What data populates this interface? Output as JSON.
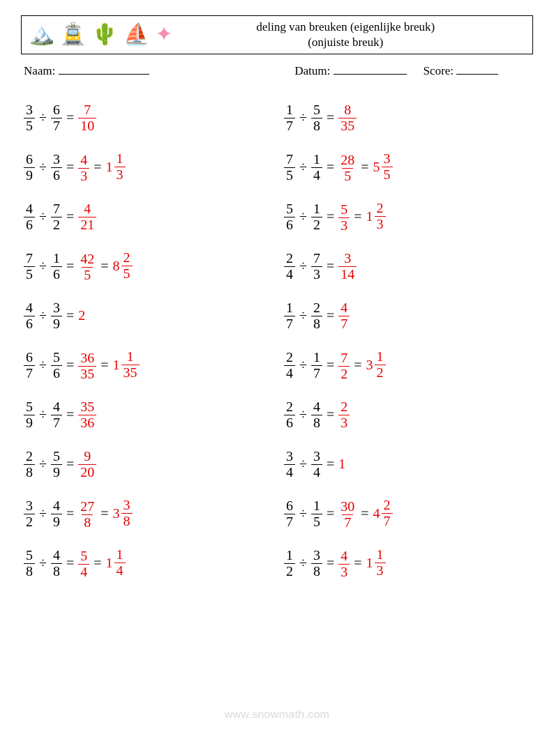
{
  "title_line1": "deling van breuken (eigenlijke breuk)",
  "title_line2": "(onjuiste breuk)",
  "labels": {
    "name": "Naam:",
    "date": "Datum:",
    "score": "Score:"
  },
  "answer_color": "#e60000",
  "text_color": "#000000",
  "background_color": "#ffffff",
  "font_size_problem": 20,
  "icons": [
    "🏔️",
    "🚊",
    "🌵",
    "⛵",
    "⭐"
  ],
  "columns": [
    [
      {
        "a": {
          "n": 3,
          "d": 5
        },
        "b": {
          "n": 6,
          "d": 7
        },
        "ans": {
          "n": 7,
          "d": 10
        }
      },
      {
        "a": {
          "n": 6,
          "d": 9
        },
        "b": {
          "n": 3,
          "d": 6
        },
        "ans": {
          "n": 4,
          "d": 3
        },
        "mixed": {
          "w": 1,
          "n": 1,
          "d": 3
        }
      },
      {
        "a": {
          "n": 4,
          "d": 6
        },
        "b": {
          "n": 7,
          "d": 2
        },
        "ans": {
          "n": 4,
          "d": 21
        }
      },
      {
        "a": {
          "n": 7,
          "d": 5
        },
        "b": {
          "n": 1,
          "d": 6
        },
        "ans": {
          "n": 42,
          "d": 5
        },
        "mixed": {
          "w": 8,
          "n": 2,
          "d": 5
        }
      },
      {
        "a": {
          "n": 4,
          "d": 6
        },
        "b": {
          "n": 3,
          "d": 9
        },
        "ans_int": 2
      },
      {
        "a": {
          "n": 6,
          "d": 7
        },
        "b": {
          "n": 5,
          "d": 6
        },
        "ans": {
          "n": 36,
          "d": 35
        },
        "mixed": {
          "w": 1,
          "n": 1,
          "d": 35
        }
      },
      {
        "a": {
          "n": 5,
          "d": 9
        },
        "b": {
          "n": 4,
          "d": 7
        },
        "ans": {
          "n": 35,
          "d": 36
        }
      },
      {
        "a": {
          "n": 2,
          "d": 8
        },
        "b": {
          "n": 5,
          "d": 9
        },
        "ans": {
          "n": 9,
          "d": 20
        }
      },
      {
        "a": {
          "n": 3,
          "d": 2
        },
        "b": {
          "n": 4,
          "d": 9
        },
        "ans": {
          "n": 27,
          "d": 8
        },
        "mixed": {
          "w": 3,
          "n": 3,
          "d": 8
        }
      },
      {
        "a": {
          "n": 5,
          "d": 8
        },
        "b": {
          "n": 4,
          "d": 8
        },
        "ans": {
          "n": 5,
          "d": 4
        },
        "mixed": {
          "w": 1,
          "n": 1,
          "d": 4
        }
      }
    ],
    [
      {
        "a": {
          "n": 1,
          "d": 7
        },
        "b": {
          "n": 5,
          "d": 8
        },
        "ans": {
          "n": 8,
          "d": 35
        }
      },
      {
        "a": {
          "n": 7,
          "d": 5
        },
        "b": {
          "n": 1,
          "d": 4
        },
        "ans": {
          "n": 28,
          "d": 5
        },
        "mixed": {
          "w": 5,
          "n": 3,
          "d": 5
        }
      },
      {
        "a": {
          "n": 5,
          "d": 6
        },
        "b": {
          "n": 1,
          "d": 2
        },
        "ans": {
          "n": 5,
          "d": 3
        },
        "mixed": {
          "w": 1,
          "n": 2,
          "d": 3
        }
      },
      {
        "a": {
          "n": 2,
          "d": 4
        },
        "b": {
          "n": 7,
          "d": 3
        },
        "ans": {
          "n": 3,
          "d": 14
        }
      },
      {
        "a": {
          "n": 1,
          "d": 7
        },
        "b": {
          "n": 2,
          "d": 8
        },
        "ans": {
          "n": 4,
          "d": 7
        }
      },
      {
        "a": {
          "n": 2,
          "d": 4
        },
        "b": {
          "n": 1,
          "d": 7
        },
        "ans": {
          "n": 7,
          "d": 2
        },
        "mixed": {
          "w": 3,
          "n": 1,
          "d": 2
        }
      },
      {
        "a": {
          "n": 2,
          "d": 6
        },
        "b": {
          "n": 4,
          "d": 8
        },
        "ans": {
          "n": 2,
          "d": 3
        }
      },
      {
        "a": {
          "n": 3,
          "d": 4
        },
        "b": {
          "n": 3,
          "d": 4
        },
        "ans_int": 1
      },
      {
        "a": {
          "n": 6,
          "d": 7
        },
        "b": {
          "n": 1,
          "d": 5
        },
        "ans": {
          "n": 30,
          "d": 7
        },
        "mixed": {
          "w": 4,
          "n": 2,
          "d": 7
        }
      },
      {
        "a": {
          "n": 1,
          "d": 2
        },
        "b": {
          "n": 3,
          "d": 8
        },
        "ans": {
          "n": 4,
          "d": 3
        },
        "mixed": {
          "w": 1,
          "n": 1,
          "d": 3
        }
      }
    ]
  ],
  "watermark": "www.snowmath.com"
}
